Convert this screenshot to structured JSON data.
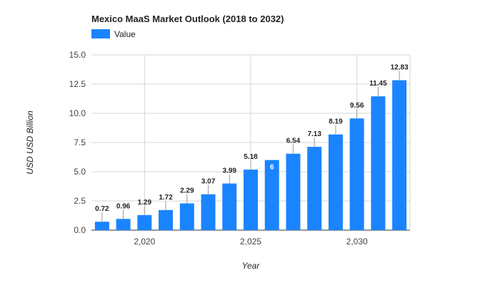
{
  "chart_data": {
    "type": "bar",
    "title": "Mexico MaaS Market Outlook (2018 to 2032)",
    "xlabel": "Year",
    "ylabel": "USD USD Billion",
    "legend": {
      "position": "top-left",
      "entries": [
        "Value"
      ]
    },
    "series": [
      {
        "name": "Value",
        "color": "#1a84ff",
        "x": [
          2018,
          2019,
          2020,
          2021,
          2022,
          2023,
          2024,
          2025,
          2026,
          2027,
          2028,
          2029,
          2030,
          2031,
          2032
        ],
        "values": [
          0.72,
          0.96,
          1.29,
          1.72,
          2.29,
          3.07,
          3.99,
          5.18,
          6,
          6.54,
          7.13,
          8.19,
          9.56,
          11.45,
          12.83
        ],
        "labels": [
          "0.72",
          "0.96",
          "1.29",
          "1.72",
          "2.29",
          "3.07",
          "3.99",
          "5.18",
          "6",
          "6.54",
          "7.13",
          "8.19",
          "9.56",
          "11.45",
          "12.83"
        ]
      }
    ],
    "ylim": [
      0,
      15
    ],
    "yticks": [
      "0.0",
      "2.5",
      "5.0",
      "7.5",
      "10.0",
      "12.5",
      "15.0"
    ],
    "ytick_values": [
      0,
      2.5,
      5,
      7.5,
      10,
      12.5,
      15
    ],
    "xticks": [
      "2,020",
      "2,025",
      "2,030"
    ],
    "xtick_values": [
      2020,
      2025,
      2030
    ],
    "grid": true
  }
}
